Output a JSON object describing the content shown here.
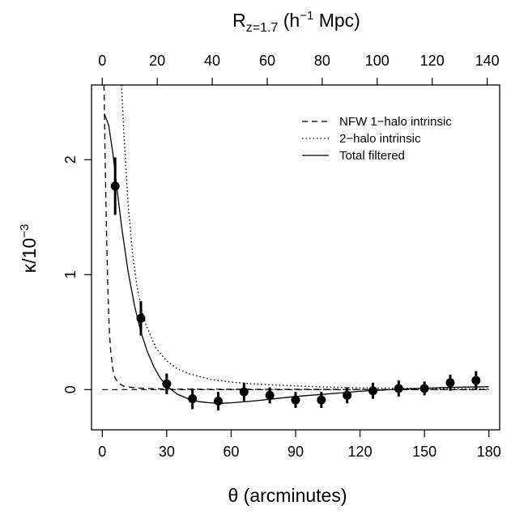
{
  "chart_data": {
    "type": "scatter",
    "title": "",
    "xlabel": {
      "symbol": "θ",
      "rest": " (arcminutes)"
    },
    "ylabel": {
      "base": "κ/10",
      "exp": "−3"
    },
    "top_axis_label": {
      "R": "R",
      "sub": "z=1.7",
      "open": " (h",
      "exp": "−1",
      "close": " Mpc)"
    },
    "xlim": [
      -5,
      185
    ],
    "ylim": [
      -0.35,
      2.65
    ],
    "x_ticks": [
      0,
      30,
      60,
      90,
      120,
      150,
      180
    ],
    "y_ticks": [
      0,
      1,
      2
    ],
    "top_ticks": [
      0,
      20,
      40,
      60,
      80,
      100,
      120,
      140
    ],
    "top_axis_arcmin_per_unit": 1.28,
    "grid": false,
    "legend": {
      "position": "top-right",
      "entries": [
        {
          "label": "NFW 1−halo intrinsic",
          "style": "dashed"
        },
        {
          "label": "2−halo intrinsic",
          "style": "dotted"
        },
        {
          "label": "Total filtered",
          "style": "solid"
        }
      ]
    },
    "points": {
      "name": "data",
      "x": [
        6,
        18,
        30,
        42,
        54,
        66,
        78,
        90,
        102,
        114,
        126,
        138,
        150,
        162,
        174
      ],
      "y": [
        1.77,
        0.62,
        0.05,
        -0.08,
        -0.1,
        -0.02,
        -0.05,
        -0.09,
        -0.09,
        -0.05,
        -0.01,
        0.01,
        0.01,
        0.06,
        0.08
      ],
      "err": [
        0.25,
        0.15,
        0.09,
        0.09,
        0.08,
        0.08,
        0.07,
        0.07,
        0.07,
        0.07,
        0.07,
        0.07,
        0.06,
        0.07,
        0.08
      ]
    },
    "curves": [
      {
        "label": "NFW 1−halo intrinsic",
        "style": "dashed",
        "x": [
          0.8,
          1.2,
          1.6,
          2.0,
          2.5,
          3.0,
          3.5,
          4.0,
          5.0,
          6.0,
          8.0,
          10,
          15,
          20,
          30,
          50,
          180
        ],
        "y": [
          2.65,
          2.2,
          1.75,
          1.35,
          0.95,
          0.65,
          0.45,
          0.32,
          0.17,
          0.1,
          0.05,
          0.03,
          0.015,
          0.01,
          0.005,
          0.003,
          0.0
        ]
      },
      {
        "label": "2−halo intrinsic",
        "style": "dotted",
        "x": [
          9,
          10,
          12,
          14,
          16,
          18,
          20,
          25,
          30,
          35,
          40,
          50,
          60,
          70,
          80,
          100,
          120,
          150,
          180
        ],
        "y": [
          2.65,
          2.25,
          1.62,
          1.2,
          0.92,
          0.72,
          0.58,
          0.36,
          0.25,
          0.18,
          0.14,
          0.09,
          0.065,
          0.05,
          0.04,
          0.025,
          0.015,
          0.01,
          0.005
        ]
      },
      {
        "label": "Total filtered",
        "style": "solid",
        "x": [
          1,
          3,
          5,
          7,
          9,
          12,
          15,
          18,
          21,
          24,
          27,
          30,
          35,
          40,
          45,
          50,
          55,
          60,
          70,
          80,
          90,
          100,
          110,
          120,
          130,
          140,
          150,
          160,
          170,
          180
        ],
        "y": [
          2.4,
          2.3,
          2.05,
          1.73,
          1.42,
          1.03,
          0.73,
          0.5,
          0.33,
          0.2,
          0.1,
          0.03,
          -0.04,
          -0.08,
          -0.105,
          -0.115,
          -0.12,
          -0.115,
          -0.1,
          -0.08,
          -0.06,
          -0.045,
          -0.03,
          -0.015,
          -0.005,
          0.005,
          0.012,
          0.018,
          0.022,
          0.025
        ]
      }
    ]
  }
}
